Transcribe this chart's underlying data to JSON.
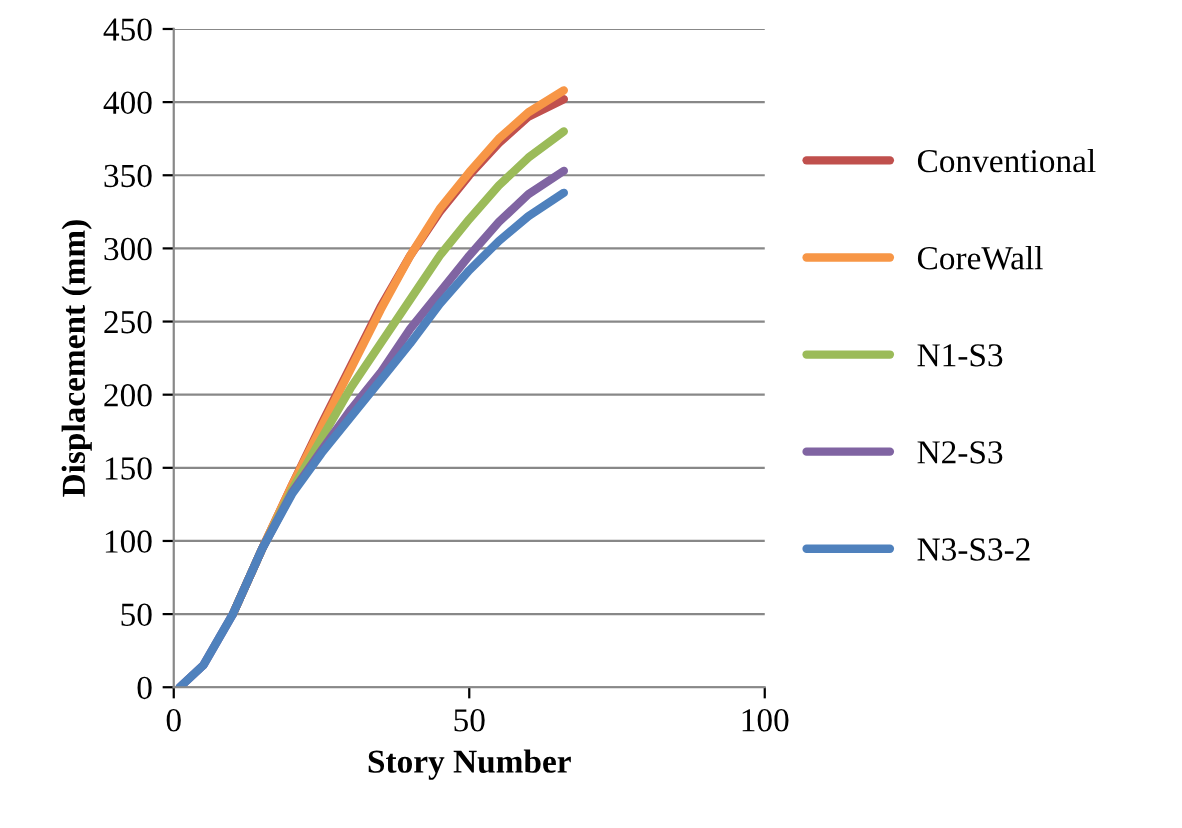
{
  "chart_data": {
    "type": "line",
    "xlabel": "Story Number",
    "ylabel": "Displacement (mm)",
    "xlim": [
      0,
      100
    ],
    "xticks": [
      0,
      50,
      100
    ],
    "ylim": [
      0,
      450
    ],
    "yticks": [
      0,
      50,
      100,
      150,
      200,
      250,
      300,
      350,
      400,
      450
    ],
    "grid": "y",
    "legend": "right",
    "marker": "none",
    "line_style": "solid",
    "x": [
      1,
      5,
      10,
      15,
      20,
      25,
      30,
      35,
      40,
      45,
      50,
      55,
      60,
      66
    ],
    "series": [
      {
        "name": "Conventional",
        "color": "#c0504d",
        "values": [
          null,
          null,
          50,
          95,
          138,
          180,
          220,
          260,
          295,
          325,
          350,
          372,
          390,
          402
        ]
      },
      {
        "name": "CoreWall",
        "color": "#f79646",
        "values": [
          null,
          null,
          50,
          95,
          138,
          178,
          218,
          258,
          295,
          327,
          352,
          375,
          393,
          408
        ]
      },
      {
        "name": "N1-S3",
        "color": "#9bbb59",
        "values": [
          null,
          null,
          50,
          95,
          135,
          170,
          205,
          235,
          265,
          295,
          320,
          343,
          362,
          380
        ]
      },
      {
        "name": "N2-S3",
        "color": "#8064a2",
        "values": [
          0,
          15,
          50,
          95,
          133,
          162,
          190,
          215,
          245,
          270,
          295,
          318,
          337,
          353
        ]
      },
      {
        "name": "N3-S3-2",
        "color": "#4f81bd",
        "values": [
          0,
          15,
          50,
          95,
          132,
          160,
          185,
          210,
          235,
          262,
          285,
          305,
          322,
          338
        ]
      }
    ]
  }
}
